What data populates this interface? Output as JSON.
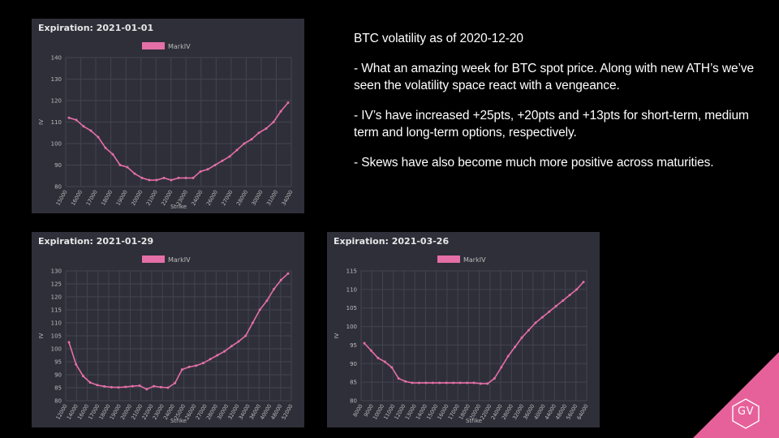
{
  "notes": {
    "heading": "BTC volatility as of 2020-12-20",
    "points": [
      "- What an amazing week for BTC spot price. Along with new ATH’s we’ve seen the volatility space react with a vengeance.",
      "- IV’s have increased +25pts, +20pts and +13pts for short-term, medium term and long-term options, respectively.",
      "- Skews have also become much more positive across maturities."
    ]
  },
  "logo": {
    "text": "GV",
    "color": "#e6619a"
  },
  "colors": {
    "panel_bg": "#2f2f3a",
    "line": "#e46fa6",
    "grid": "#44444f",
    "text": "#bbbbbb"
  },
  "chart_data": [
    {
      "type": "line",
      "title": "Expiration: 2021-01-01",
      "xlabel": "Strike",
      "ylabel": "IV",
      "legend": "top-center",
      "series": [
        {
          "name": "MarkIV"
        }
      ],
      "ylim": [
        80,
        140
      ],
      "yticks": [
        80,
        90,
        100,
        110,
        120,
        130,
        140
      ],
      "xtick_labels": [
        "15000",
        "16000",
        "17000",
        "18000",
        "19000",
        "20000",
        "21000",
        "22000",
        "23000",
        "24000",
        "26000",
        "27000",
        "28000",
        "30000",
        "31000",
        "34000"
      ],
      "x": [
        "15000",
        "15500",
        "16000",
        "16500",
        "17000",
        "17500",
        "18000",
        "18500",
        "19000",
        "19500",
        "20000",
        "20500",
        "21000",
        "21500",
        "22000",
        "22500",
        "23000",
        "23500",
        "24000",
        "25000",
        "26000",
        "26500",
        "27000",
        "27500",
        "28000",
        "29000",
        "30000",
        "31000",
        "32000",
        "34000",
        "36000"
      ],
      "values": [
        112,
        111,
        108,
        106,
        103,
        98,
        95,
        90,
        89,
        86,
        84,
        83,
        83,
        84,
        83,
        84,
        84,
        84,
        87,
        88,
        90,
        92,
        94,
        97,
        100,
        102,
        105,
        107,
        110,
        115,
        119
      ]
    },
    {
      "type": "line",
      "title": "Expiration: 2021-01-29",
      "xlabel": "Strike",
      "ylabel": "IV",
      "legend": "top-center",
      "series": [
        {
          "name": "MarkIV"
        }
      ],
      "ylim": [
        80,
        130
      ],
      "yticks": [
        80,
        85,
        90,
        95,
        100,
        105,
        110,
        115,
        120,
        125,
        130
      ],
      "xtick_labels": [
        "12000",
        "14000",
        "16000",
        "17000",
        "18000",
        "19000",
        "20000",
        "21000",
        "22000",
        "23000",
        "24000",
        "25000",
        "26000",
        "27000",
        "28000",
        "30000",
        "32000",
        "34000",
        "36000",
        "40000",
        "48000",
        "52000"
      ],
      "x": [
        "12000",
        "13000",
        "14000",
        "15000",
        "16000",
        "17000",
        "18000",
        "18500",
        "19000",
        "19500",
        "20000",
        "21000",
        "22000",
        "23000",
        "24000",
        "25000",
        "26000",
        "27000",
        "28000",
        "29000",
        "30000",
        "31000",
        "32000",
        "34000",
        "36000",
        "38000",
        "40000",
        "44000",
        "48000",
        "52000",
        "56000",
        "60000"
      ],
      "values": [
        102.5,
        94,
        89.5,
        87,
        86,
        85.5,
        85.2,
        85.1,
        85.3,
        85.6,
        85.8,
        84.4,
        85.6,
        85.2,
        85,
        86.8,
        92,
        93,
        93.5,
        94.5,
        96,
        97.5,
        99,
        101,
        102.8,
        105,
        110,
        115,
        118.5,
        123,
        126.5,
        129
      ]
    },
    {
      "type": "line",
      "title": "Expiration: 2021-03-26",
      "xlabel": "Strike",
      "ylabel": "IV",
      "legend": "top-center",
      "series": [
        {
          "name": "MarkIV"
        }
      ],
      "ylim": [
        80,
        115
      ],
      "yticks": [
        80,
        85,
        90,
        95,
        100,
        105,
        110,
        115
      ],
      "xtick_labels": [
        "8000",
        "9000",
        "10000",
        "11000",
        "12000",
        "13000",
        "14000",
        "15000",
        "16000",
        "17000",
        "18000",
        "20000",
        "22000",
        "24000",
        "28000",
        "32000",
        "36000",
        "40000",
        "44000",
        "48000",
        "56000",
        "64000"
      ],
      "x": [
        "8000",
        "8500",
        "9000",
        "9500",
        "10000",
        "10500",
        "11000",
        "12000",
        "13000",
        "14000",
        "15000",
        "16000",
        "17000",
        "18000",
        "19000",
        "20000",
        "21000",
        "22000",
        "24000",
        "26000",
        "28000",
        "30000",
        "32000",
        "34000",
        "36000",
        "38000",
        "40000",
        "44000",
        "48000",
        "52000",
        "56000",
        "60000",
        "64000"
      ],
      "values": [
        95.5,
        93.5,
        91.5,
        90.5,
        89,
        86,
        85.2,
        84.8,
        84.8,
        84.8,
        84.8,
        84.8,
        84.8,
        84.8,
        84.8,
        84.8,
        84.8,
        84.6,
        84.6,
        86,
        89,
        92,
        94.5,
        97,
        99,
        101,
        102.5,
        104,
        105.5,
        107,
        108.5,
        110,
        112
      ]
    }
  ]
}
